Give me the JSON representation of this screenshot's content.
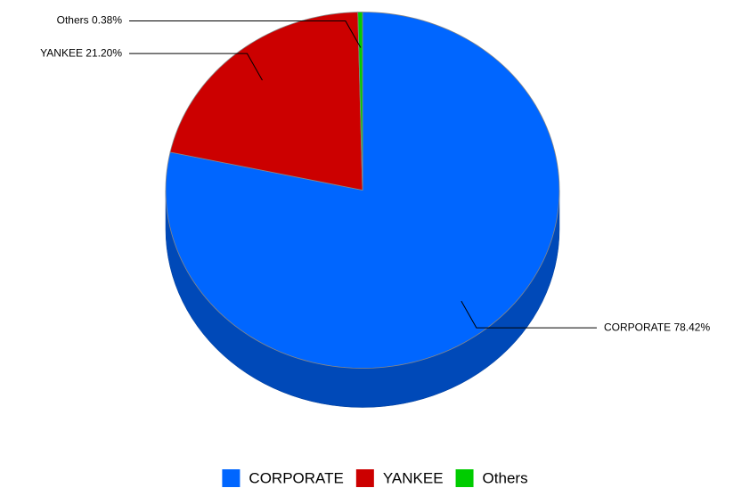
{
  "chart_data": {
    "type": "pie",
    "categories": [
      "CORPORATE",
      "YANKEE",
      "Others"
    ],
    "values": [
      78.42,
      21.2,
      0.38
    ],
    "value_labels": [
      "CORPORATE 78.42%",
      "YANKEE 21.20%",
      "Others 0.38%"
    ],
    "colors": [
      "#0066ff",
      "#cc0000",
      "#00cc00"
    ],
    "legend": "bottom"
  }
}
